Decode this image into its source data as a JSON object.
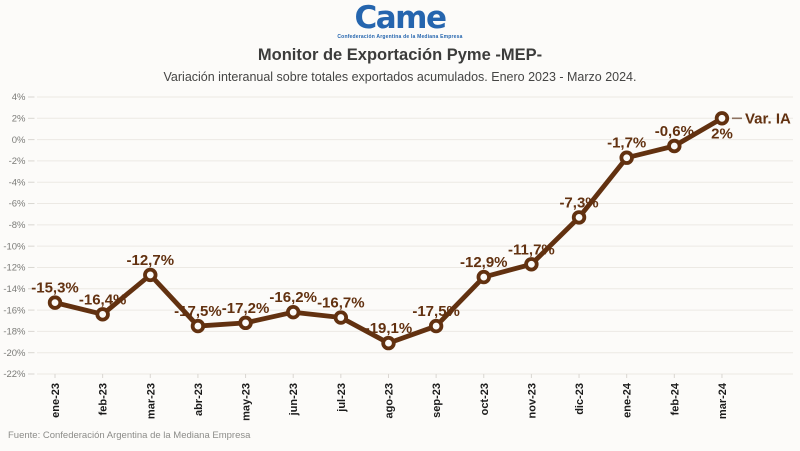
{
  "logo": {
    "text": "Came",
    "subtext": "Confederación Argentina de la Mediana Empresa",
    "color": "#2565AE"
  },
  "header": {
    "title": "Monitor de Exportación Pyme -MEP-",
    "subtitle": "Variación interanual sobre totales exportados acumulados. Enero 2023 - Marzo 2024."
  },
  "chart_data": {
    "type": "line",
    "series_name": "Var. IA",
    "categories": [
      "ene-23",
      "feb-23",
      "mar-23",
      "abr-23",
      "may-23",
      "jun-23",
      "jul-23",
      "ago-23",
      "sep-23",
      "oct-23",
      "nov-23",
      "dic-23",
      "ene-24",
      "feb-24",
      "mar-24"
    ],
    "values": [
      -15.3,
      -16.4,
      -12.7,
      -17.5,
      -17.2,
      -16.2,
      -16.7,
      -19.1,
      -17.5,
      -12.9,
      -11.7,
      -7.3,
      -1.7,
      -0.6,
      2
    ],
    "point_labels": [
      "-15,3%",
      "-16,4%",
      "-12,7%",
      "-17,5%",
      "-17,2%",
      "-16,2%",
      "-16,7%",
      "-19,1%",
      "-17,5%",
      "-12,9%",
      "-11,7%",
      "-7,3%",
      "-1,7%",
      "-0,6%",
      "2%"
    ],
    "ylim": [
      -22,
      4
    ],
    "ytick_step": 2,
    "ytick_labels": [
      "4%",
      "2%",
      "0%",
      "-2%",
      "-4%",
      "-6%",
      "-8%",
      "-10%",
      "-12%",
      "-14%",
      "-16%",
      "-18%",
      "-20%",
      "-22%"
    ],
    "grid": true,
    "line_color": "#623110",
    "label_color": "#623110",
    "marker_style": "open-circle",
    "legend_position": "right-of-last-point"
  },
  "footer": {
    "source": "Fuente: Confederación Argentina de la Mediana Empresa"
  }
}
